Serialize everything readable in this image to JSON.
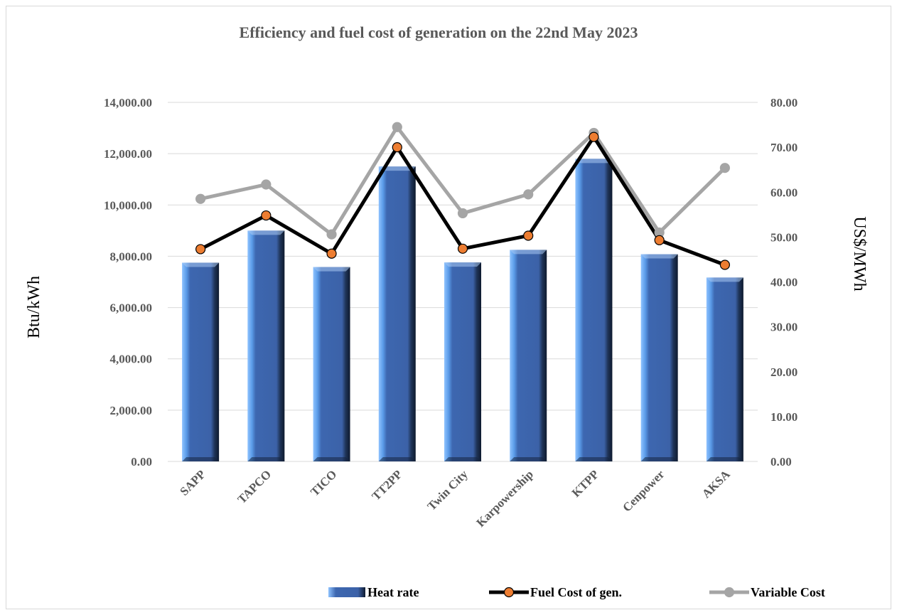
{
  "chart_data": {
    "type": "bar",
    "title": "Efficiency and fuel cost of generation on the 22nd May 2023",
    "categories": [
      "SAPP",
      "TAPCO",
      "TICO",
      "TT2PP",
      "Twin City",
      "Karpowership",
      "KTPP",
      "Cenpower",
      "AKSA"
    ],
    "ylabel": "Btu/kWh",
    "y2label": "US$/MWh",
    "ylim": [
      0,
      14000
    ],
    "y2lim": [
      0,
      80
    ],
    "y_ticks": [
      "0.00",
      "2,000.00",
      "4,000.00",
      "6,000.00",
      "8,000.00",
      "10,000.00",
      "12,000.00",
      "14,000.00"
    ],
    "y2_ticks": [
      "0.00",
      "10.00",
      "20.00",
      "30.00",
      "40.00",
      "50.00",
      "60.00",
      "70.00",
      "80.00"
    ],
    "grid": true,
    "legend_position": "bottom",
    "series": [
      {
        "name": "Heat rate",
        "type": "bar",
        "axis": "left",
        "color": "#4472c4",
        "values": [
          7750,
          9000,
          7580,
          11500,
          7760,
          8250,
          11800,
          8080,
          7170
        ]
      },
      {
        "name": "Fuel Cost of gen.",
        "type": "line",
        "axis": "right",
        "color": "#000000",
        "marker_color": "#ed7d31",
        "values": [
          47.3,
          54.8,
          46.3,
          70.0,
          47.4,
          50.3,
          72.3,
          49.3,
          43.8
        ]
      },
      {
        "name": "Variable Cost",
        "type": "line",
        "axis": "right",
        "color": "#a5a5a5",
        "marker_color": "#a5a5a5",
        "values": [
          58.5,
          61.7,
          50.6,
          74.5,
          55.3,
          59.5,
          73.2,
          51.0,
          65.4
        ]
      }
    ]
  }
}
